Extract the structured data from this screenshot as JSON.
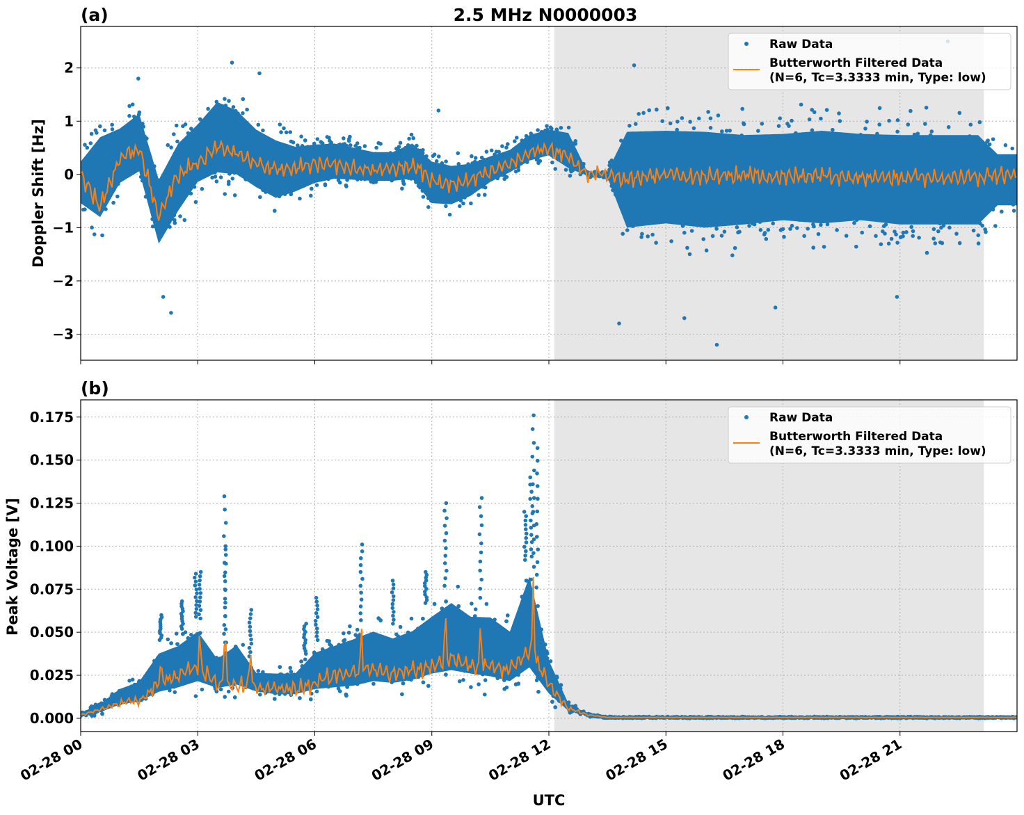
{
  "chart_data": [
    {
      "type": "scatter",
      "panel_label": "(a)",
      "title": "2.5 MHz N0000003",
      "xlabel": "",
      "ylabel": "Doppler Shift [Hz]",
      "xlim_hours": [
        0,
        24
      ],
      "ylim": [
        -3.49,
        2.78
      ],
      "yticks": [
        2,
        1,
        0,
        -1,
        -2,
        -3
      ],
      "ytick_labels": [
        "2",
        "1",
        "0",
        "−1",
        "−2",
        "−3"
      ],
      "grid": true,
      "shaded_interval_hours": [
        12.14,
        23.15
      ],
      "legend": {
        "placement": "top-right",
        "entries": [
          "Raw Data",
          "Butterworth Filtered Data",
          "(N=6, Tc=3.3333 min, Type: low)"
        ]
      },
      "series": [
        {
          "name": "Raw Data",
          "color": "#1f77b4",
          "t_hours": [
            0,
            0.5,
            1,
            1.5,
            2,
            2.5,
            3,
            3.5,
            4,
            4.5,
            5,
            5.5,
            6,
            6.5,
            7,
            7.5,
            8,
            8.5,
            9,
            9.5,
            10,
            10.5,
            11,
            11.5,
            12,
            12.5,
            13,
            13.5,
            14,
            15,
            16,
            17,
            18,
            19,
            20,
            21,
            22,
            23,
            23.5,
            24
          ],
          "low": [
            -0.8,
            -1.3,
            -0.5,
            -0.3,
            -1.7,
            -1.1,
            -0.5,
            -0.4,
            -0.4,
            -0.6,
            -0.8,
            -0.6,
            -0.4,
            -0.3,
            -0.3,
            -0.3,
            -0.3,
            -0.3,
            -0.8,
            -0.8,
            -0.6,
            -0.3,
            -0.1,
            0.1,
            0.2,
            -0.1,
            -0.05,
            -0.08,
            -1.6,
            -1.5,
            -1.6,
            -1.5,
            -1.4,
            -1.5,
            -1.4,
            -1.5,
            -1.5,
            -1.5,
            -0.9,
            -0.9
          ],
          "high": [
            0.5,
            1.2,
            1.2,
            1.5,
            0.3,
            1.0,
            1.3,
            1.8,
            1.6,
            1.2,
            1.0,
            0.8,
            0.8,
            0.8,
            0.7,
            0.6,
            0.6,
            0.8,
            0.5,
            0.4,
            0.4,
            0.5,
            0.6,
            0.9,
            1.0,
            1.0,
            0.05,
            0.08,
            1.4,
            1.4,
            1.4,
            1.3,
            1.3,
            1.4,
            1.3,
            1.3,
            1.3,
            1.3,
            0.7,
            0.7
          ],
          "outliers": [
            [
              2.3,
              -2.6
            ],
            [
              2.1,
              -2.3
            ],
            [
              3.9,
              2.1
            ],
            [
              4.6,
              1.9
            ],
            [
              14.2,
              2.05
            ],
            [
              16.3,
              -3.2
            ],
            [
              15.5,
              -2.7
            ],
            [
              22.2,
              2.5
            ],
            [
              13.8,
              -2.8
            ],
            [
              17.8,
              -2.5
            ],
            [
              20.9,
              -2.3
            ],
            [
              1.5,
              1.8
            ],
            [
              9.2,
              1.2
            ]
          ]
        },
        {
          "name": "Butterworth Filtered Data",
          "color": "#ff7f0e",
          "t_hours": [
            0,
            0.5,
            1,
            1.5,
            2,
            2.5,
            3,
            3.5,
            4,
            4.5,
            5,
            5.5,
            6,
            6.5,
            7,
            7.5,
            8,
            8.5,
            9,
            9.5,
            10,
            10.5,
            11,
            11.5,
            12,
            12.5,
            13,
            13.5,
            14,
            15,
            16,
            17,
            18,
            19,
            20,
            21,
            22,
            23,
            23.5,
            24
          ],
          "values": [
            0,
            -0.6,
            0.3,
            0.5,
            -0.8,
            0,
            0.2,
            0.5,
            0.4,
            0.2,
            0.1,
            0.1,
            0.2,
            0.2,
            0.1,
            0.1,
            0.1,
            0.2,
            -0.1,
            -0.2,
            -0.1,
            0.05,
            0.2,
            0.4,
            0.5,
            0.3,
            0,
            0,
            -0.1,
            0,
            -0.05,
            0,
            -0.05,
            0,
            -0.05,
            -0.05,
            -0.05,
            -0.05,
            0,
            0
          ],
          "noise_amplitude": 0.2
        }
      ]
    },
    {
      "type": "scatter",
      "panel_label": "(b)",
      "title": "",
      "xlabel": "UTC",
      "ylabel": "Peak Voltage [V]",
      "xlim_hours": [
        0,
        24
      ],
      "ylim": [
        -0.0077,
        0.185
      ],
      "yticks": [
        0,
        0.025,
        0.05,
        0.075,
        0.1,
        0.125,
        0.15,
        0.175
      ],
      "ytick_labels": [
        "0.000",
        "0.025",
        "0.050",
        "0.075",
        "0.100",
        "0.125",
        "0.150",
        "0.175"
      ],
      "xticks_hours": [
        0,
        3,
        6,
        9,
        12,
        15,
        18,
        21
      ],
      "xtick_labels": [
        "02-28 00",
        "02-28 03",
        "02-28 06",
        "02-28 09",
        "02-28 12",
        "02-28 15",
        "02-28 18",
        "02-28 21"
      ],
      "grid": true,
      "shaded_interval_hours": [
        12.14,
        23.15
      ],
      "legend": {
        "placement": "top-right",
        "entries": [
          "Raw Data",
          "Butterworth Filtered Data",
          "(N=6, Tc=3.3333 min, Type: low)"
        ]
      },
      "series": [
        {
          "name": "Raw Data",
          "color": "#1f77b4",
          "t_hours": [
            0,
            0.5,
            1,
            1.5,
            2,
            2.5,
            3,
            3.5,
            4,
            4.5,
            5,
            5.5,
            6,
            6.5,
            7,
            7.5,
            8,
            8.5,
            9,
            9.5,
            10,
            10.5,
            11,
            11.5,
            12,
            12.5,
            13,
            13.5,
            14,
            18,
            24
          ],
          "low": [
            0,
            0.002,
            0.005,
            0.006,
            0.008,
            0.01,
            0.012,
            0.012,
            0.012,
            0.012,
            0.01,
            0.01,
            0.01,
            0.01,
            0.01,
            0.012,
            0.012,
            0.013,
            0.015,
            0.015,
            0.015,
            0.013,
            0.012,
            0.012,
            0.008,
            0.003,
            0.001,
            0,
            0,
            0,
            0
          ],
          "high": [
            0.004,
            0.01,
            0.02,
            0.025,
            0.045,
            0.05,
            0.06,
            0.04,
            0.05,
            0.03,
            0.03,
            0.03,
            0.045,
            0.05,
            0.055,
            0.06,
            0.055,
            0.06,
            0.07,
            0.08,
            0.07,
            0.07,
            0.06,
            0.1,
            0.04,
            0.01,
            0.003,
            0.001,
            0.001,
            0.001,
            0.001
          ],
          "outliers": [
            [
              2.05,
              0.06
            ],
            [
              2.6,
              0.068
            ],
            [
              2.95,
              0.084
            ],
            [
              3.05,
              0.085
            ],
            [
              3.7,
              0.129
            ],
            [
              3.7,
              0.1
            ],
            [
              4.35,
              0.063
            ],
            [
              5.75,
              0.055
            ],
            [
              6.05,
              0.07
            ],
            [
              7.2,
              0.101
            ],
            [
              8.0,
              0.08
            ],
            [
              8.85,
              0.085
            ],
            [
              9.35,
              0.125
            ],
            [
              10.25,
              0.128
            ],
            [
              11.4,
              0.12
            ],
            [
              11.6,
              0.176
            ],
            [
              11.7,
              0.157
            ],
            [
              11.55,
              0.14
            ]
          ]
        },
        {
          "name": "Butterworth Filtered Data",
          "color": "#ff7f0e",
          "t_hours": [
            0,
            0.5,
            1,
            1.5,
            2,
            2.5,
            3,
            3.5,
            4,
            4.5,
            5,
            5.5,
            6,
            6.5,
            7,
            7.5,
            8,
            8.5,
            9,
            9.5,
            10,
            10.5,
            11,
            11.5,
            12,
            12.5,
            13,
            13.5,
            14,
            18,
            24
          ],
          "values": [
            0.002,
            0.005,
            0.009,
            0.01,
            0.02,
            0.025,
            0.03,
            0.02,
            0.02,
            0.018,
            0.017,
            0.017,
            0.02,
            0.025,
            0.027,
            0.028,
            0.026,
            0.028,
            0.03,
            0.035,
            0.03,
            0.03,
            0.028,
            0.04,
            0.02,
            0.006,
            0.002,
            0.0005,
            0.0005,
            0.0005,
            0.0005
          ],
          "peaks": [
            [
              2.05,
              0.032
            ],
            [
              3.05,
              0.052
            ],
            [
              3.7,
              0.06
            ],
            [
              4.35,
              0.042
            ],
            [
              7.2,
              0.052
            ],
            [
              9.35,
              0.064
            ],
            [
              10.25,
              0.058
            ],
            [
              11.6,
              0.082
            ]
          ],
          "noise_amplitude": 0.006
        }
      ]
    }
  ]
}
